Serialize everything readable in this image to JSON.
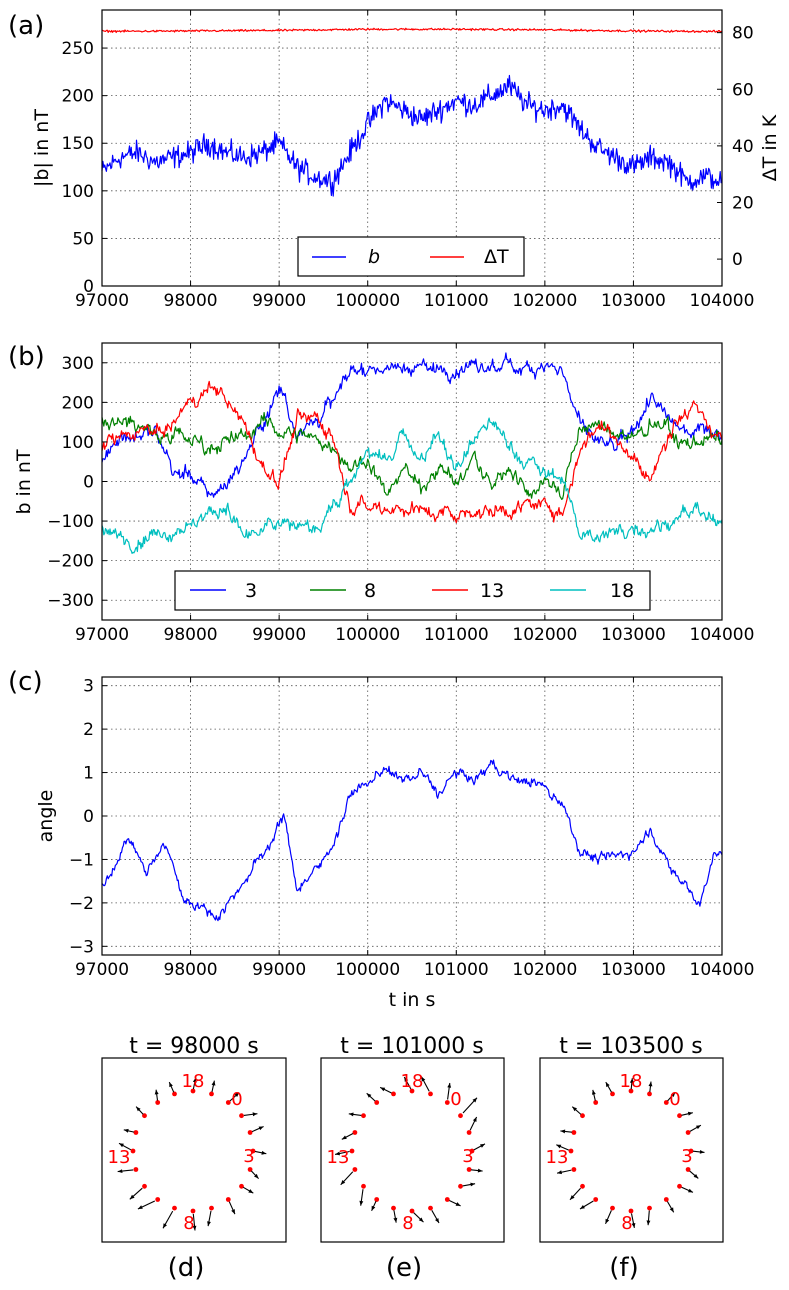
{
  "chart_data": [
    {
      "id": "a",
      "type": "line",
      "panel_label": "(a)",
      "ylabel": "|b| in nT",
      "y2label": "ΔT in K",
      "xlim": [
        97000,
        104000
      ],
      "ylim": [
        0,
        290
      ],
      "y2lim": [
        -9.5,
        88
      ],
      "xticks": [
        "97000",
        "98000",
        "99000",
        "100000",
        "101000",
        "102000",
        "103000",
        "104000"
      ],
      "yticks": [
        "0",
        "50",
        "100",
        "150",
        "200",
        "250"
      ],
      "y2ticks": [
        "0",
        "20",
        "40",
        "60",
        "80"
      ],
      "legend": [
        "b",
        "ΔT"
      ],
      "series": [
        {
          "name": "b",
          "color": "#0000ff",
          "x": [
            97000,
            97200,
            97400,
            97600,
            97800,
            98000,
            98200,
            98400,
            98600,
            98800,
            99000,
            99200,
            99400,
            99600,
            99800,
            100000,
            100200,
            100400,
            100600,
            100800,
            101000,
            101200,
            101400,
            101600,
            101800,
            102000,
            102200,
            102400,
            102600,
            102800,
            103000,
            103200,
            103400,
            103600,
            103800,
            104000
          ],
          "values": [
            120,
            135,
            140,
            130,
            135,
            140,
            150,
            140,
            135,
            140,
            150,
            125,
            115,
            110,
            140,
            170,
            195,
            185,
            175,
            185,
            195,
            190,
            200,
            210,
            190,
            185,
            190,
            165,
            145,
            135,
            125,
            135,
            130,
            110,
            115,
            110
          ]
        },
        {
          "name": "ΔT",
          "color": "#ff0000",
          "x": [
            97000,
            97500,
            98000,
            98500,
            99000,
            99500,
            100000,
            100500,
            101000,
            101500,
            102000,
            102500,
            103000,
            103500,
            104000
          ],
          "values": [
            80.5,
            80.5,
            80.6,
            80.7,
            80.8,
            81.0,
            81.2,
            81.2,
            81.2,
            81.1,
            81.0,
            80.8,
            80.6,
            80.5,
            80.4
          ]
        }
      ]
    },
    {
      "id": "b",
      "type": "line",
      "panel_label": "(b)",
      "ylabel": "b in nT",
      "xlim": [
        97000,
        104000
      ],
      "ylim": [
        -350,
        350
      ],
      "xticks": [
        "97000",
        "98000",
        "99000",
        "100000",
        "101000",
        "102000",
        "103000",
        "104000"
      ],
      "yticks": [
        "−300",
        "−200",
        "−100",
        "0",
        "100",
        "200",
        "300"
      ],
      "legend": [
        "3",
        "8",
        "13",
        "18"
      ],
      "series": [
        {
          "name": "3",
          "color": "#0000ff",
          "x": [
            97000,
            97200,
            97400,
            97600,
            97800,
            98000,
            98200,
            98400,
            98600,
            98800,
            99000,
            99200,
            99400,
            99600,
            99800,
            100000,
            100500,
            101000,
            101500,
            102000,
            102200,
            102400,
            102600,
            102800,
            103000,
            103200,
            103400,
            103600,
            103800,
            104000
          ],
          "values": [
            50,
            120,
            110,
            130,
            30,
            10,
            -30,
            -10,
            60,
            140,
            240,
            130,
            150,
            200,
            280,
            285,
            290,
            280,
            290,
            295,
            280,
            140,
            100,
            80,
            120,
            220,
            150,
            130,
            140,
            120
          ]
        },
        {
          "name": "8",
          "color": "#008000",
          "x": [
            97000,
            97200,
            97400,
            97600,
            97800,
            98000,
            98200,
            98400,
            98600,
            98800,
            99000,
            99200,
            99400,
            99600,
            99800,
            100000,
            100200,
            100400,
            100600,
            100800,
            101000,
            101200,
            101400,
            101600,
            101800,
            102000,
            102200,
            102400,
            102600,
            102800,
            103000,
            103200,
            103400,
            103600,
            103800,
            104000
          ],
          "values": [
            150,
            160,
            140,
            130,
            120,
            110,
            90,
            100,
            110,
            150,
            130,
            120,
            110,
            90,
            30,
            60,
            -40,
            40,
            -20,
            50,
            -10,
            60,
            -20,
            40,
            -30,
            0,
            -20,
            130,
            140,
            120,
            110,
            140,
            130,
            90,
            110,
            100
          ]
        },
        {
          "name": "13",
          "color": "#ff0000",
          "x": [
            97000,
            97200,
            97400,
            97600,
            97800,
            98000,
            98200,
            98400,
            98600,
            98800,
            99000,
            99200,
            99400,
            99600,
            99800,
            100000,
            100500,
            101000,
            101500,
            102000,
            102200,
            102400,
            102600,
            102800,
            103000,
            103200,
            103400,
            103600,
            103800,
            104000
          ],
          "values": [
            80,
            110,
            130,
            120,
            140,
            200,
            240,
            220,
            140,
            40,
            0,
            150,
            170,
            120,
            -50,
            -60,
            -70,
            -80,
            -70,
            -60,
            -80,
            90,
            140,
            120,
            60,
            0,
            130,
            180,
            160,
            100
          ]
        },
        {
          "name": "18",
          "color": "#00bfbf",
          "x": [
            97000,
            97200,
            97400,
            97600,
            97800,
            98000,
            98200,
            98400,
            98600,
            98800,
            99000,
            99200,
            99400,
            99600,
            99800,
            100000,
            100200,
            100400,
            100600,
            100800,
            101000,
            101200,
            101400,
            101600,
            101800,
            102000,
            102200,
            102400,
            102600,
            102800,
            103000,
            103200,
            103400,
            103600,
            103800,
            104000
          ],
          "values": [
            -120,
            -140,
            -150,
            -130,
            -120,
            -110,
            -90,
            -60,
            -140,
            -130,
            -100,
            -110,
            -120,
            -60,
            0,
            80,
            40,
            120,
            60,
            110,
            30,
            100,
            160,
            80,
            50,
            20,
            10,
            -130,
            -140,
            -130,
            -110,
            -120,
            -100,
            -80,
            -90,
            -120
          ]
        }
      ]
    },
    {
      "id": "c",
      "type": "line",
      "panel_label": "(c)",
      "ylabel": "angle",
      "xlabel": "t in s",
      "xlim": [
        97000,
        104000
      ],
      "ylim": [
        -3.2,
        3.2
      ],
      "xticks": [
        "97000",
        "98000",
        "99000",
        "100000",
        "101000",
        "102000",
        "103000",
        "104000"
      ],
      "yticks": [
        "−3",
        "−2",
        "−1",
        "0",
        "1",
        "2",
        "3"
      ],
      "series": [
        {
          "name": "angle",
          "color": "#0000ff",
          "x": [
            97000,
            97200,
            97300,
            97500,
            97700,
            97800,
            97900,
            98100,
            98300,
            98500,
            98700,
            98900,
            99050,
            99200,
            99400,
            99600,
            99800,
            100000,
            100200,
            100400,
            100600,
            100800,
            101000,
            101200,
            101400,
            101600,
            101800,
            102000,
            102200,
            102400,
            102600,
            102800,
            103000,
            103200,
            103400,
            103600,
            103750,
            103900,
            104000
          ],
          "values": [
            -1.6,
            -0.9,
            -0.5,
            -1.3,
            -0.7,
            -1.1,
            -1.8,
            -2.1,
            -2.3,
            -1.8,
            -1.2,
            -0.6,
            0.0,
            -1.6,
            -1.3,
            -0.7,
            0.5,
            0.7,
            1.1,
            0.8,
            1.0,
            0.5,
            1.0,
            0.8,
            1.2,
            0.9,
            0.8,
            0.7,
            0.3,
            -0.8,
            -1.0,
            -0.9,
            -0.8,
            -0.3,
            -1.2,
            -1.6,
            -2.1,
            -0.9,
            -0.8
          ]
        }
      ]
    },
    {
      "id": "d",
      "type": "scatter",
      "panel_label": "(d)",
      "title": "t = 98000 s",
      "ring_labels": [
        "18",
        "0",
        "3",
        "8",
        "13"
      ],
      "ring_count": 20,
      "arrow_lengths": [
        0.15,
        0.2,
        0.25,
        0.2,
        0.15,
        0.1,
        0.15,
        0.25,
        0.35,
        0.4,
        0.55,
        0.5,
        0.4,
        0.35,
        0.25,
        0.1,
        0.1,
        0.12,
        0.12,
        0.15
      ]
    },
    {
      "id": "e",
      "type": "scatter",
      "panel_label": "(e)",
      "title": "t = 101000 s",
      "ring_labels": [
        "18",
        "0",
        "3",
        "8",
        "13"
      ],
      "ring_count": 20,
      "arrow_lengths": [
        0.4,
        0.4,
        0.6,
        0.3,
        0.2,
        0.15,
        0.2,
        0.2,
        0.3,
        0.25,
        0.2,
        0.1,
        0.4,
        0.45,
        0.3,
        0.2,
        0.2,
        0.15,
        0.2,
        0.25
      ]
    },
    {
      "id": "f",
      "type": "scatter",
      "panel_label": "(f)",
      "title": "t = 103500 s",
      "ring_labels": [
        "18",
        "0",
        "3",
        "8",
        "13"
      ],
      "ring_count": 20,
      "arrow_lengths": [
        0.1,
        0.15,
        0.15,
        0.2,
        0.15,
        0.15,
        0.2,
        0.2,
        0.3,
        0.3,
        0.3,
        0.35,
        0.35,
        0.3,
        0.25,
        0.15,
        0.15,
        0.12,
        0.15,
        0.12
      ]
    }
  ]
}
